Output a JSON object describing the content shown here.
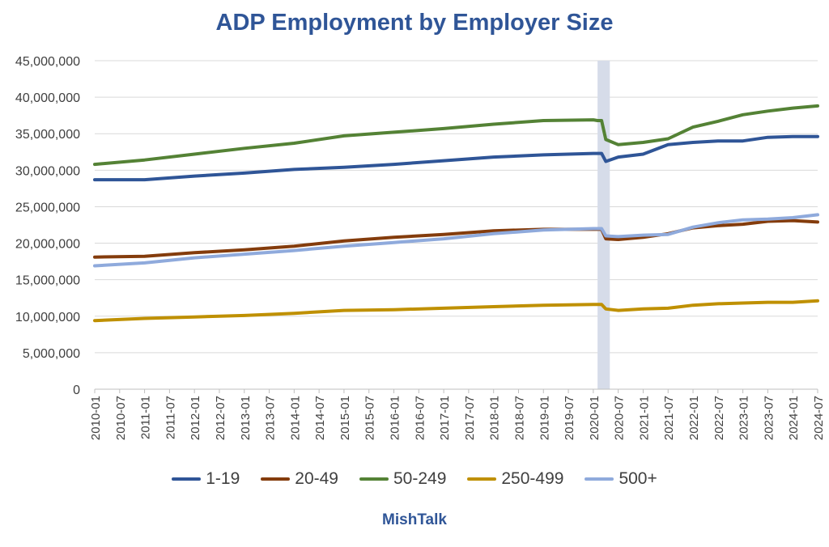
{
  "title": "ADP Employment by Employer Size",
  "footer": "MishTalk",
  "chart_data": {
    "type": "line",
    "title": "ADP Employment by Employer Size",
    "xlabel": "",
    "ylabel": "",
    "ylim": [
      0,
      45000000
    ],
    "yticks": [
      0,
      5000000,
      10000000,
      15000000,
      20000000,
      25000000,
      30000000,
      35000000,
      40000000,
      45000000
    ],
    "ytick_labels": [
      "0",
      "5,000,000",
      "10,000,000",
      "15,000,000",
      "20,000,000",
      "25,000,000",
      "30,000,000",
      "35,000,000",
      "40,000,000",
      "45,000,000"
    ],
    "x_tick_labels": [
      "2010-01",
      "2010-07",
      "2011-01",
      "2011-07",
      "2012-01",
      "2012-07",
      "2013-01",
      "2013-07",
      "2014-01",
      "2014-07",
      "2015-01",
      "2015-07",
      "2016-01",
      "2016-07",
      "2017-01",
      "2017-07",
      "2018-01",
      "2018-07",
      "2019-01",
      "2019-07",
      "2020-01",
      "2020-07",
      "2021-01",
      "2021-07",
      "2022-01",
      "2022-07",
      "2023-01",
      "2023-07",
      "2024-01",
      "2024-07"
    ],
    "grid": true,
    "legend_position": "bottom",
    "shaded_period": [
      "2020-03",
      "2020-04"
    ],
    "series": [
      {
        "name": "1-19",
        "color": "#2f5597",
        "x": [
          "2010-01",
          "2011-01",
          "2012-01",
          "2013-01",
          "2014-01",
          "2015-01",
          "2016-01",
          "2017-01",
          "2018-01",
          "2019-01",
          "2020-01",
          "2020-02",
          "2020-03",
          "2020-04",
          "2020-07",
          "2021-01",
          "2021-07",
          "2022-01",
          "2022-07",
          "2023-01",
          "2023-07",
          "2024-01",
          "2024-07"
        ],
        "values": [
          28700000,
          28700000,
          29200000,
          29600000,
          30100000,
          30400000,
          30800000,
          31300000,
          31800000,
          32100000,
          32300000,
          32300000,
          32300000,
          31200000,
          31800000,
          32200000,
          33500000,
          33800000,
          34000000,
          34000000,
          34500000,
          34600000,
          34600000
        ]
      },
      {
        "name": "20-49",
        "color": "#843c0c",
        "x": [
          "2010-01",
          "2011-01",
          "2012-01",
          "2013-01",
          "2014-01",
          "2015-01",
          "2016-01",
          "2017-01",
          "2018-01",
          "2019-01",
          "2020-01",
          "2020-02",
          "2020-03",
          "2020-04",
          "2020-07",
          "2021-01",
          "2021-07",
          "2022-01",
          "2022-07",
          "2023-01",
          "2023-07",
          "2024-01",
          "2024-07"
        ],
        "values": [
          18100000,
          18200000,
          18700000,
          19100000,
          19600000,
          20300000,
          20800000,
          21200000,
          21700000,
          21900000,
          21900000,
          21900000,
          21900000,
          20600000,
          20500000,
          20800000,
          21300000,
          22100000,
          22400000,
          22600000,
          23000000,
          23100000,
          22900000
        ]
      },
      {
        "name": "50-249",
        "color": "#548235",
        "x": [
          "2010-01",
          "2011-01",
          "2012-01",
          "2013-01",
          "2014-01",
          "2015-01",
          "2016-01",
          "2017-01",
          "2018-01",
          "2019-01",
          "2020-01",
          "2020-02",
          "2020-03",
          "2020-04",
          "2020-07",
          "2021-01",
          "2021-07",
          "2022-01",
          "2022-07",
          "2023-01",
          "2023-07",
          "2024-01",
          "2024-07"
        ],
        "values": [
          30800000,
          31400000,
          32200000,
          33000000,
          33700000,
          34700000,
          35200000,
          35700000,
          36300000,
          36800000,
          36900000,
          36800000,
          36800000,
          34200000,
          33500000,
          33800000,
          34300000,
          35900000,
          36700000,
          37600000,
          38100000,
          38500000,
          38800000
        ]
      },
      {
        "name": "250-499",
        "color": "#bf9000",
        "x": [
          "2010-01",
          "2011-01",
          "2012-01",
          "2013-01",
          "2014-01",
          "2015-01",
          "2016-01",
          "2017-01",
          "2018-01",
          "2019-01",
          "2020-01",
          "2020-02",
          "2020-03",
          "2020-04",
          "2020-07",
          "2021-01",
          "2021-07",
          "2022-01",
          "2022-07",
          "2023-01",
          "2023-07",
          "2024-01",
          "2024-07"
        ],
        "values": [
          9400000,
          9700000,
          9900000,
          10100000,
          10400000,
          10800000,
          10900000,
          11100000,
          11300000,
          11500000,
          11600000,
          11600000,
          11600000,
          11000000,
          10800000,
          11000000,
          11100000,
          11500000,
          11700000,
          11800000,
          11900000,
          11900000,
          12100000
        ]
      },
      {
        "name": "500+",
        "color": "#8faadc",
        "x": [
          "2010-01",
          "2011-01",
          "2012-01",
          "2013-01",
          "2014-01",
          "2015-01",
          "2016-01",
          "2017-01",
          "2018-01",
          "2019-01",
          "2020-01",
          "2020-02",
          "2020-03",
          "2020-04",
          "2020-07",
          "2021-01",
          "2021-07",
          "2022-01",
          "2022-07",
          "2023-01",
          "2023-07",
          "2024-01",
          "2024-07"
        ],
        "values": [
          16900000,
          17300000,
          18000000,
          18500000,
          19000000,
          19600000,
          20100000,
          20600000,
          21300000,
          21800000,
          22000000,
          22000000,
          22000000,
          21000000,
          20900000,
          21100000,
          21200000,
          22200000,
          22800000,
          23200000,
          23300000,
          23500000,
          23900000
        ]
      }
    ]
  }
}
